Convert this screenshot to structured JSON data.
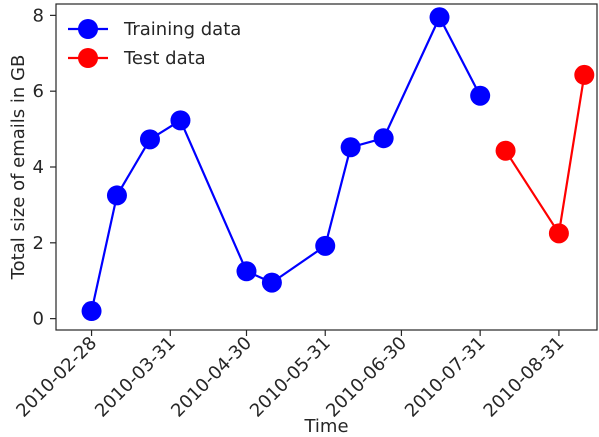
{
  "chart_data": {
    "type": "line",
    "title": "",
    "xlabel": "Time",
    "ylabel": "Total size of emails in GB",
    "ylim": [
      -0.3,
      8.3
    ],
    "y_ticks": [
      0,
      2,
      4,
      6,
      8
    ],
    "x_ticks": [
      "2010-02-28",
      "2010-03-31",
      "2010-04-30",
      "2010-05-31",
      "2010-06-30",
      "2010-07-31",
      "2010-08-31"
    ],
    "x_axis_type": "date",
    "xlim": [
      "2010-02-14",
      "2010-09-15"
    ],
    "grid": false,
    "legend_position": "upper-left",
    "series": [
      {
        "name": "Training data",
        "color": "#0000ff",
        "marker": "circle",
        "points": [
          {
            "x": "2010-02-28",
            "y": 0.2
          },
          {
            "x": "2010-03-10",
            "y": 3.25
          },
          {
            "x": "2010-03-23",
            "y": 4.73
          },
          {
            "x": "2010-04-04",
            "y": 5.23
          },
          {
            "x": "2010-04-30",
            "y": 1.25
          },
          {
            "x": "2010-05-10",
            "y": 0.95
          },
          {
            "x": "2010-05-31",
            "y": 1.92
          },
          {
            "x": "2010-06-10",
            "y": 4.52
          },
          {
            "x": "2010-06-23",
            "y": 4.76
          },
          {
            "x": "2010-07-15",
            "y": 7.95
          },
          {
            "x": "2010-07-31",
            "y": 5.88
          }
        ]
      },
      {
        "name": "Test data",
        "color": "#ff0000",
        "marker": "circle",
        "points": [
          {
            "x": "2010-08-10",
            "y": 4.43
          },
          {
            "x": "2010-08-31",
            "y": 2.25
          },
          {
            "x": "2010-09-10",
            "y": 6.43
          }
        ]
      }
    ]
  }
}
